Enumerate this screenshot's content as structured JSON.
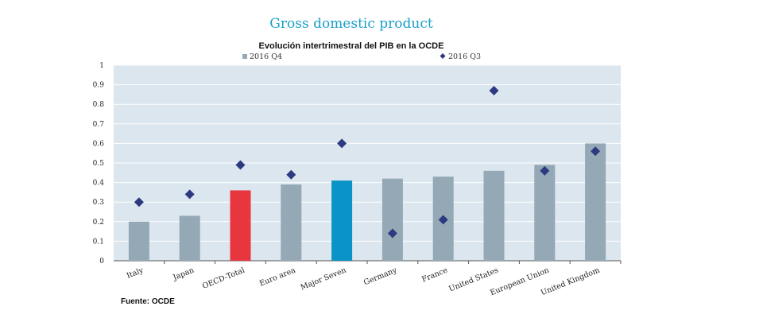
{
  "header": {
    "title": "Gross domestic product",
    "subtitle": "Evolución intertrimestral del PIB en la OCDE"
  },
  "footer": {
    "source": "Fuente: OCDE"
  },
  "chart_data": {
    "type": "bar",
    "title": "Evolución intertrimestral del PIB en la OCDE",
    "categories": [
      "Italy",
      "Japan",
      "OECD-Total",
      "Euro area",
      "Major Seven",
      "Germany",
      "France",
      "United States",
      "European Union",
      "United Kingdom"
    ],
    "series": [
      {
        "name": "2016 Q4",
        "type": "bar",
        "values": [
          0.2,
          0.23,
          0.36,
          0.39,
          0.41,
          0.42,
          0.43,
          0.46,
          0.49,
          0.6
        ]
      },
      {
        "name": "2016 Q3",
        "type": "scatter",
        "values": [
          0.3,
          0.34,
          0.49,
          0.44,
          0.6,
          0.14,
          0.21,
          0.87,
          0.46,
          0.56
        ]
      }
    ],
    "ylim": [
      0,
      1
    ],
    "yticks": [
      "0",
      "0.1",
      "0.2",
      "0.3",
      "0.4",
      "0.5",
      "0.6",
      "0.7",
      "0.8",
      "0.9",
      "1"
    ],
    "grid": true,
    "legend": "top",
    "colors": {
      "bar": "#94a8b6",
      "highlight_oecd": "#e8363f",
      "highlight_g7": "#0a93c6",
      "marker": "#2e3a80",
      "plot_background": "#dbe6ee",
      "gridline": "#ffffff"
    },
    "highlights": {
      "OECD-Total": "highlight_oecd",
      "Major Seven": "highlight_g7"
    }
  }
}
